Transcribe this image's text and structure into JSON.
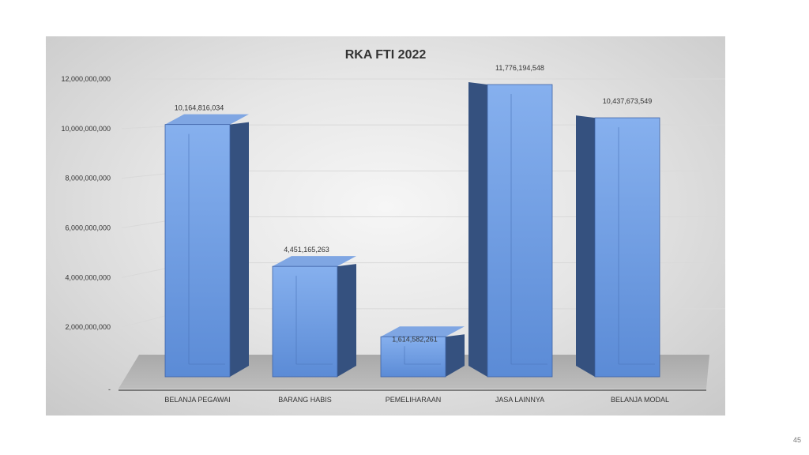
{
  "chart_data": {
    "type": "bar",
    "title": "RKA FTI 2022",
    "categories": [
      "BELANJA PEGAWAI",
      "BARANG HABIS",
      "PEMELIHARAAN",
      "JASA LAINNYA",
      "BELANJA MODAL"
    ],
    "values": [
      10164816034,
      4451165263,
      1614582261,
      11776194548,
      10437673549
    ],
    "value_labels": [
      "10,164,816,034",
      "4,451,165,263",
      "1,614,582,261",
      "11,776,194,548",
      "10,437,673,549"
    ],
    "yticks": [
      0,
      2000000000,
      4000000000,
      6000000000,
      8000000000,
      10000000000,
      12000000000
    ],
    "ytick_labels": [
      "-",
      "2,000,000,000",
      "4,000,000,000",
      "6,000,000,000",
      "8,000,000,000",
      "10,000,000,000",
      "12,000,000,000"
    ],
    "ylim": [
      0,
      12000000000
    ],
    "xlabel": "",
    "ylabel": "",
    "grid": true,
    "style": "3d-bar",
    "colors": {
      "bar_front": "#5b8bd6",
      "bar_front_light": "#86b0ee",
      "bar_side": "#35517f",
      "bar_top": "#7fa6e3",
      "floor": "#a9a9a9",
      "gridline": "#d9d9d9"
    }
  },
  "page": {
    "number": "45"
  }
}
